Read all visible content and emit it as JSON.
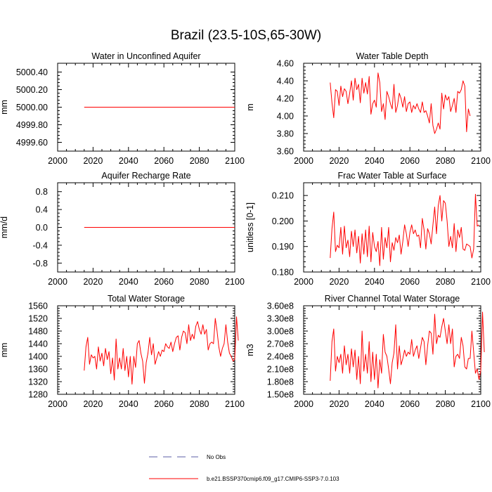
{
  "figure": {
    "title": "Brazil (23.5-10S,65-30W)"
  },
  "legend": {
    "entries": [
      {
        "label": "No Obs",
        "style": "dashed",
        "color": "#5b5fa6"
      },
      {
        "label": "b.e21.BSSP370cmip6.f09_g17.CMIP6-SSP3-7.0.103",
        "style": "solid",
        "color": "#ff0000"
      }
    ]
  },
  "chart_data": [
    {
      "id": "p1",
      "type": "line",
      "title": "Water in Unconfined Aquifer",
      "ylabel": "mm",
      "xlim": [
        2000,
        2100
      ],
      "ylim": [
        4999.5,
        5000.5
      ],
      "xticks": [
        2000,
        2020,
        2040,
        2060,
        2080,
        2100
      ],
      "yticks": [
        4999.6,
        4999.8,
        5000.0,
        5000.2,
        5000.4
      ],
      "ytick_labels": [
        "4999.60",
        "4999.80",
        "5000.00",
        "5000.20",
        "5000.40"
      ],
      "series": [
        {
          "name": "b.e21.BSSP370cmip6.f09_g17.CMIP6-SSP3-7.0.103",
          "color": "#ff0000",
          "x_start": 2015,
          "values": [
            5000,
            5000,
            5000,
            5000,
            5000,
            5000,
            5000,
            5000,
            5000,
            5000,
            5000,
            5000,
            5000,
            5000,
            5000,
            5000,
            5000,
            5000,
            5000,
            5000,
            5000,
            5000,
            5000,
            5000,
            5000,
            5000,
            5000,
            5000,
            5000,
            5000,
            5000,
            5000,
            5000,
            5000,
            5000,
            5000,
            5000,
            5000,
            5000,
            5000,
            5000,
            5000,
            5000,
            5000,
            5000,
            5000,
            5000,
            5000,
            5000,
            5000,
            5000,
            5000,
            5000,
            5000,
            5000,
            5000,
            5000,
            5000,
            5000,
            5000,
            5000,
            5000,
            5000,
            5000,
            5000,
            5000,
            5000,
            5000,
            5000,
            5000,
            5000,
            5000,
            5000,
            5000,
            5000,
            5000,
            5000,
            5000,
            5000,
            5000,
            5000,
            5000,
            5000,
            5000,
            5000,
            5000
          ]
        }
      ]
    },
    {
      "id": "p2",
      "type": "line",
      "title": "Water Table Depth",
      "ylabel": "m",
      "xlim": [
        2000,
        2100
      ],
      "ylim": [
        3.6,
        4.6
      ],
      "xticks": [
        2000,
        2020,
        2040,
        2060,
        2080,
        2100
      ],
      "yticks": [
        3.6,
        3.8,
        4.0,
        4.2,
        4.4,
        4.6
      ],
      "ytick_labels": [
        "3.60",
        "3.80",
        "4.00",
        "4.20",
        "4.40",
        "4.60"
      ],
      "series": [
        {
          "name": "b.e21.BSSP370cmip6.f09_g17.CMIP6-SSP3-7.0.103",
          "color": "#ff0000",
          "x_start": 2015,
          "values": [
            4.38,
            4.15,
            3.98,
            4.3,
            4.28,
            4.12,
            4.34,
            4.22,
            4.31,
            4.28,
            4.14,
            4.26,
            4.4,
            4.18,
            4.43,
            4.3,
            4.36,
            4.15,
            4.43,
            4.26,
            4.38,
            4.25,
            4.45,
            4.02,
            4.14,
            4.18,
            4.1,
            4.49,
            4.38,
            4.05,
            4.14,
            3.96,
            4.28,
            4.22,
            4.14,
            4.08,
            4.36,
            4.04,
            4.12,
            4.26,
            4.2,
            4.1,
            4.22,
            4.05,
            4.14,
            4.16,
            4.04,
            4.12,
            4.08,
            4.14,
            4.08,
            4.04,
            4.16,
            4.04,
            4.06,
            4.0,
            3.92,
            4.14,
            3.89,
            3.8,
            3.85,
            3.92,
            3.85,
            4.26,
            4.08,
            4.24,
            4.18,
            4.22,
            4.05,
            4.12,
            4.2,
            4.04,
            4.28,
            4.26,
            4.3,
            4.4,
            4.34,
            3.82,
            4.08,
            4.0
          ]
        }
      ]
    },
    {
      "id": "p3",
      "type": "line",
      "title": "Aquifer Recharge Rate",
      "ylabel": "mm/d",
      "xlim": [
        2000,
        2100
      ],
      "ylim": [
        -1.0,
        1.0
      ],
      "xticks": [
        2000,
        2020,
        2040,
        2060,
        2080,
        2100
      ],
      "yticks": [
        -0.8,
        -0.4,
        0.0,
        0.4,
        0.8
      ],
      "ytick_labels": [
        "-0.8",
        "-0.4",
        "0.0",
        "0.4",
        "0.8"
      ],
      "series": [
        {
          "name": "b.e21.BSSP370cmip6.f09_g17.CMIP6-SSP3-7.0.103",
          "color": "#ff0000",
          "x_start": 2015,
          "values": [
            0,
            0,
            0,
            0,
            0,
            0,
            0,
            0,
            0,
            0,
            0,
            0,
            0,
            0,
            0,
            0,
            0,
            0,
            0,
            0,
            0,
            0,
            0,
            0,
            0,
            0,
            0,
            0,
            0,
            0,
            0,
            0,
            0,
            0,
            0,
            0,
            0,
            0,
            0,
            0,
            0,
            0,
            0,
            0,
            0,
            0,
            0,
            0,
            0,
            0,
            0,
            0,
            0,
            0,
            0,
            0,
            0,
            0,
            0,
            0,
            0,
            0,
            0,
            0,
            0,
            0,
            0,
            0,
            0,
            0,
            0,
            0,
            0,
            0,
            0,
            0,
            0,
            0,
            0,
            0,
            0,
            0,
            0,
            0,
            0,
            0
          ]
        }
      ]
    },
    {
      "id": "p4",
      "type": "line",
      "title": "Frac Water Table at Surface",
      "ylabel": "unitless [0-1]",
      "xlim": [
        2000,
        2100
      ],
      "ylim": [
        0.18,
        0.215
      ],
      "xticks": [
        2000,
        2020,
        2040,
        2060,
        2080,
        2100
      ],
      "yticks": [
        0.18,
        0.19,
        0.2,
        0.21
      ],
      "ytick_labels": [
        "0.180",
        "0.190",
        "0.200",
        "0.210"
      ],
      "series": [
        {
          "name": "b.e21.BSSP370cmip6.f09_g17.CMIP6-SSP3-7.0.103",
          "color": "#ff0000",
          "x_start": 2015,
          "values": [
            0.1855,
            0.197,
            0.2035,
            0.188,
            0.1905,
            0.1895,
            0.1975,
            0.187,
            0.198,
            0.1895,
            0.1925,
            0.186,
            0.196,
            0.19,
            0.1965,
            0.1875,
            0.194,
            0.1835,
            0.195,
            0.187,
            0.1965,
            0.186,
            0.198,
            0.184,
            0.1955,
            0.19,
            0.188,
            0.192,
            0.1825,
            0.1975,
            0.185,
            0.1935,
            0.1895,
            0.1975,
            0.184,
            0.1915,
            0.1885,
            0.1935,
            0.1915,
            0.1945,
            0.187,
            0.192,
            0.1985,
            0.195,
            0.19,
            0.1955,
            0.1985,
            0.195,
            0.1965,
            0.194,
            0.1945,
            0.1895,
            0.201,
            0.1965,
            0.189,
            0.197,
            0.195,
            0.191,
            0.1985,
            0.2055,
            0.195,
            0.206,
            0.21,
            0.2,
            0.208,
            0.207,
            0.2,
            0.19,
            0.194,
            0.1895,
            0.199,
            0.188,
            0.1965,
            0.1935,
            0.1975,
            0.189,
            0.1885,
            0.191,
            0.1905,
            0.19,
            0.1855,
            0.189,
            0.2105,
            0.198,
            0.1985
          ]
        }
      ]
    },
    {
      "id": "p5",
      "type": "line",
      "title": "Total Water Storage",
      "ylabel": "mm",
      "xlim": [
        2000,
        2100
      ],
      "ylim": [
        1280,
        1560
      ],
      "xticks": [
        2000,
        2020,
        2040,
        2060,
        2080,
        2100
      ],
      "yticks": [
        1280,
        1320,
        1360,
        1400,
        1440,
        1480,
        1520,
        1560
      ],
      "ytick_labels": [
        "1280",
        "1320",
        "1360",
        "1400",
        "1440",
        "1480",
        "1520",
        "1560"
      ],
      "series": [
        {
          "name": "b.e21.BSSP370cmip6.f09_g17.CMIP6-SSP3-7.0.103",
          "color": "#ff0000",
          "x_start": 2015,
          "values": [
            1355,
            1430,
            1460,
            1375,
            1405,
            1395,
            1400,
            1360,
            1430,
            1385,
            1410,
            1370,
            1425,
            1390,
            1415,
            1345,
            1395,
            1325,
            1455,
            1360,
            1395,
            1360,
            1425,
            1355,
            1400,
            1335,
            1400,
            1312,
            1400,
            1365,
            1440,
            1450,
            1410,
            1385,
            1315,
            1380,
            1410,
            1460,
            1405,
            1440,
            1375,
            1395,
            1415,
            1400,
            1420,
            1415,
            1440,
            1430,
            1425,
            1445,
            1415,
            1440,
            1460,
            1465,
            1420,
            1460,
            1480,
            1475,
            1440,
            1500,
            1450,
            1470,
            1455,
            1495,
            1510,
            1485,
            1470,
            1500,
            1470,
            1485,
            1420,
            1440,
            1445,
            1440,
            1520,
            1480,
            1430,
            1400,
            1425,
            1440,
            1500,
            1445,
            1410,
            1400,
            1385,
            1390,
            1525,
            1450
          ]
        }
      ]
    },
    {
      "id": "p6",
      "type": "line",
      "title": "River Channel Total Water Storage",
      "ylabel": "m3",
      "xlim": [
        2000,
        2100
      ],
      "ylim": [
        150000000,
        360000000
      ],
      "xticks": [
        2000,
        2020,
        2040,
        2060,
        2080,
        2100
      ],
      "yticks": [
        150000000,
        180000000,
        210000000,
        240000000,
        270000000,
        300000000,
        330000000,
        360000000
      ],
      "ytick_labels": [
        "1.50e8",
        "1.80e8",
        "2.10e8",
        "2.40e8",
        "2.70e8",
        "3.00e8",
        "3.30e8",
        "3.60e8"
      ],
      "series": [
        {
          "name": "b.e21.BSSP370cmip6.f09_g17.CMIP6-SSP3-7.0.103",
          "color": "#ff0000",
          "x_start": 2015,
          "values": [
            182000000,
            275000000,
            305000000,
            205000000,
            240000000,
            225000000,
            245000000,
            200000000,
            265000000,
            220000000,
            245000000,
            200000000,
            258000000,
            215000000,
            255000000,
            185000000,
            240000000,
            175000000,
            300000000,
            205000000,
            245000000,
            200000000,
            275000000,
            180000000,
            250000000,
            185000000,
            245000000,
            165000000,
            232000000,
            200000000,
            292000000,
            250000000,
            240000000,
            210000000,
            175000000,
            225000000,
            248000000,
            315000000,
            210000000,
            265000000,
            220000000,
            235000000,
            255000000,
            240000000,
            250000000,
            245000000,
            280000000,
            240000000,
            255000000,
            265000000,
            235000000,
            260000000,
            285000000,
            275000000,
            220000000,
            265000000,
            300000000,
            295000000,
            245000000,
            340000000,
            270000000,
            290000000,
            285000000,
            310000000,
            330000000,
            300000000,
            270000000,
            315000000,
            270000000,
            305000000,
            215000000,
            240000000,
            245000000,
            235000000,
            285000000,
            265000000,
            215000000,
            210000000,
            235000000,
            235000000,
            300000000,
            250000000,
            200000000,
            210000000,
            185000000,
            205000000,
            345000000,
            250000000
          ]
        }
      ]
    }
  ]
}
